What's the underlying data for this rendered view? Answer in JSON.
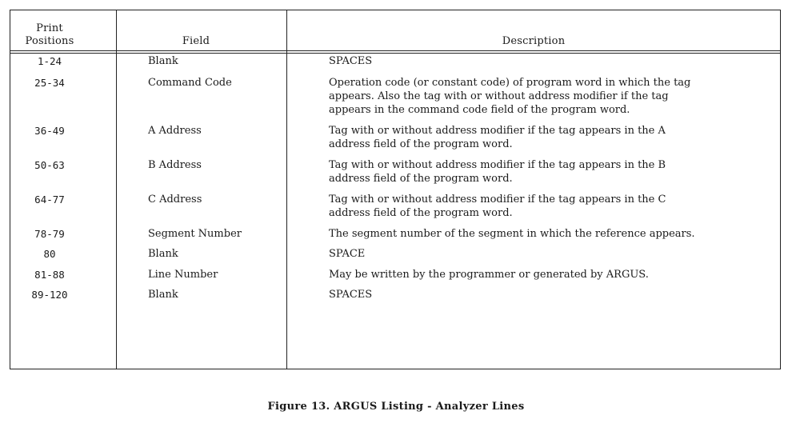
{
  "headers": {
    "print_positions": "Print\nPositions",
    "field": "Field",
    "description": "Description"
  },
  "rows": [
    {
      "pos": "1-24",
      "field": "Blank",
      "desc": "SPACES"
    },
    {
      "pos": "25-34",
      "field": "Command Code",
      "desc": "Operation code (or constant code) of program word in which the tag\nappears.  Also the tag with or without address modifier if the tag\nappears in the command code field of the program word."
    },
    {
      "pos": "36-49",
      "field": "A Address",
      "desc": "Tag with or without address modifier if the tag appears in the A\naddress field of the program word."
    },
    {
      "pos": "50-63",
      "field": "B Address",
      "desc": "Tag with or without address modifier if the tag appears in the B\naddress field of the program word."
    },
    {
      "pos": "64-77",
      "field": "C Address",
      "desc": "Tag with or without address modifier if the tag appears in the C\naddress field of the program word."
    },
    {
      "pos": "78-79",
      "field": "Segment Number",
      "desc": "The segment number of the segment in which the reference appears."
    },
    {
      "pos": "80",
      "field": "Blank",
      "desc": "SPACE"
    },
    {
      "pos": "81-88",
      "field": "Line Number",
      "desc": "May be written by the programmer or generated by ARGUS."
    },
    {
      "pos": "89-120",
      "field": "Blank",
      "desc": "SPACES"
    }
  ],
  "caption": "Figure 13.  ARGUS Listing - Analyzer Lines"
}
